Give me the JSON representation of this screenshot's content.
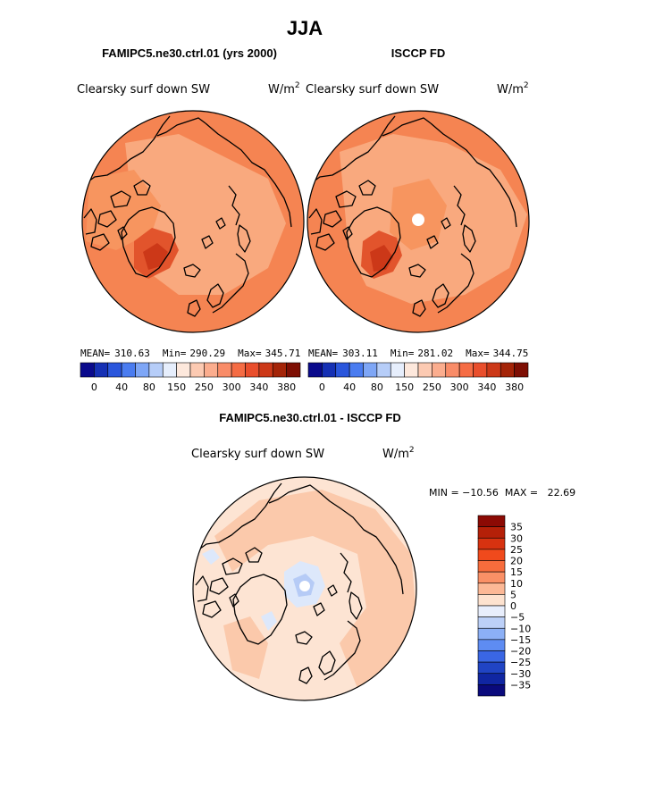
{
  "figure_title": "JJA",
  "panels": [
    {
      "title": "FAMIPC5.ne30.ctrl.01 (yrs 2000)",
      "variable": "Clearsky surf down SW",
      "units_base": "W/m",
      "units_exp": "2",
      "stats": {
        "mean_label": "MEAN=",
        "mean": "310.63",
        "min_label": "Min=",
        "min": "290.29",
        "max_label": "Max=",
        "max": "345.71"
      }
    },
    {
      "title": "ISCCP FD",
      "variable": "Clearsky surf down SW",
      "units_base": "W/m",
      "units_exp": "2",
      "stats": {
        "mean_label": "MEAN=",
        "mean": "303.11",
        "min_label": "Min=",
        "min": "281.02",
        "max_label": "Max=",
        "max": "344.75"
      }
    }
  ],
  "abs_colorbar": {
    "tick_labels": [
      "0",
      "40",
      "80",
      "150",
      "250",
      "300",
      "340",
      "380"
    ],
    "colors": [
      "#0a0a8c",
      "#1530b4",
      "#2a56dc",
      "#4a7cf0",
      "#7ea6f6",
      "#b6cdf8",
      "#e6eefc",
      "#fde8dc",
      "#fccab2",
      "#fbad8e",
      "#f98c68",
      "#f56c44",
      "#e94e2c",
      "#cc3818",
      "#a42408",
      "#7e0f04"
    ]
  },
  "diff_panel": {
    "title": "FAMIPC5.ne30.ctrl.01 - ISCCP FD",
    "variable": "Clearsky surf down SW",
    "units_base": "W/m",
    "units_exp": "2",
    "range_text": "MIN = −10.56  MAX =   22.69"
  },
  "diff_colorbar": {
    "tick_labels": [
      "35",
      "30",
      "25",
      "20",
      "15",
      "10",
      "5",
      "0",
      "−5",
      "−10",
      "−15",
      "−20",
      "−25",
      "−30",
      "−35"
    ],
    "colors_top_to_bottom": [
      "#8c0a04",
      "#b52008",
      "#d73210",
      "#f04a1c",
      "#f76c3c",
      "#fa9066",
      "#fcb896",
      "#fde2cf",
      "#e8eefc",
      "#bcd0f8",
      "#8cb0f6",
      "#5e8cf2",
      "#3a66e4",
      "#2044c4",
      "#1026a2",
      "#0a0a7c"
    ]
  },
  "map_colors": {
    "main_abs": "#f58452",
    "light_abs": "#f9a97e",
    "mid_abs": "#f7955f",
    "dark_abs": "#e2542c",
    "darkest_abs": "#cc3818",
    "diff_bg": "#fde4d3",
    "diff_mid": "#fbc9ab",
    "diff_neg": "#dde8fb",
    "diff_neg2": "#b6cbf6"
  }
}
